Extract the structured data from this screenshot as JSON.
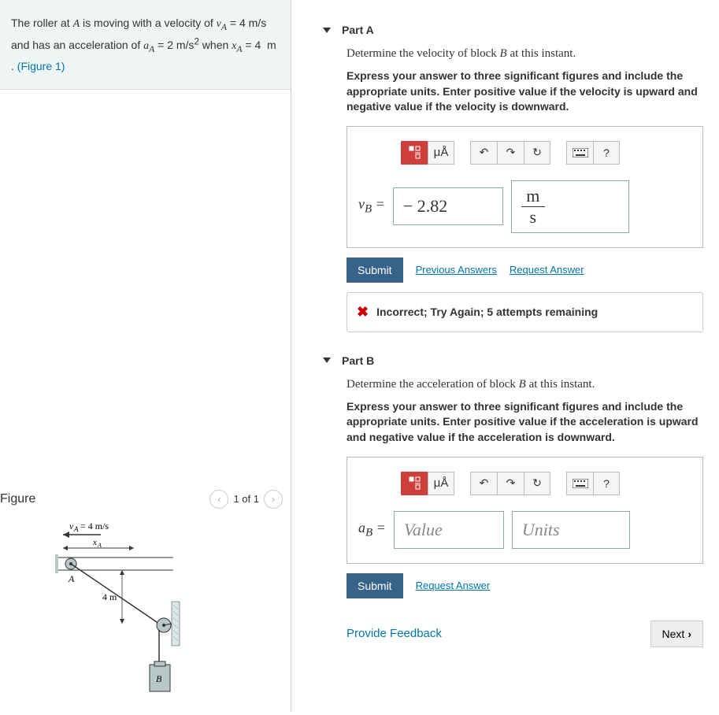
{
  "problem": {
    "text_html": "The roller at <em>A</em> is moving with a velocity of <em>v<sub>A</sub></em> = 4 m/s and has an acceleration of <em>a<sub>A</sub></em> = 2 m/s<sup>2</sup> when <em>x<sub>A</sub></em> = 4 &nbsp;m . ",
    "figure_link": "(Figure 1)"
  },
  "figure": {
    "title": "Figure",
    "nav_text": "1 of 1",
    "va_label": "v_A = 4 m/s",
    "xa_label": "x_A",
    "length_label": "4 m",
    "a_label": "A",
    "b_label": "B"
  },
  "partA": {
    "title": "Part A",
    "question_html": "Determine the velocity of block <em>B</em> at this instant.",
    "instructions": "Express your answer to three significant figures and include the appropriate units. Enter positive value if the velocity is upward and negative value if the velocity is downward.",
    "var_label_html": "<em>v<sub>B</sub></em> =",
    "value": "− 2.82",
    "units_num": "m",
    "units_den": "s",
    "submit": "Submit",
    "prev_answers": "Previous Answers",
    "request_answer": "Request Answer",
    "feedback": "Incorrect; Try Again; 5 attempts remaining",
    "toolbar": {
      "units_btn": "μÅ"
    }
  },
  "partB": {
    "title": "Part B",
    "question_html": "Determine the acceleration of block <em>B</em> at this instant.",
    "instructions": "Express your answer to three significant figures and include the appropriate units. Enter positive value if the acceleration is upward and negative value if the acceleration is downward.",
    "var_label_html": "<em>a<sub>B</sub></em> =",
    "value_placeholder": "Value",
    "units_placeholder": "Units",
    "submit": "Submit",
    "request_answer": "Request Answer",
    "toolbar": {
      "units_btn": "μÅ"
    }
  },
  "footer": {
    "provide_feedback": "Provide Feedback",
    "next": "Next"
  },
  "colors": {
    "accent_red": "#ce3e3a",
    "submit_blue": "#37638a",
    "link_blue": "#0077aa",
    "error_red": "#cc0000",
    "input_border": "#8aa"
  }
}
